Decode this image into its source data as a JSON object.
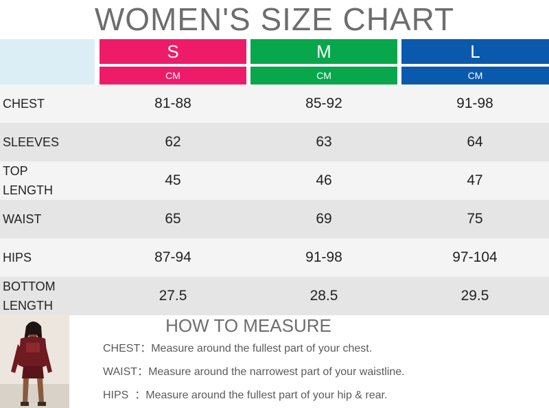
{
  "title": "WOMEN'S SIZE CHART",
  "sizes": [
    {
      "label": "S",
      "unit": "CM",
      "color": "#ee1c68"
    },
    {
      "label": "M",
      "unit": "CM",
      "color": "#08a74c"
    },
    {
      "label": "L",
      "unit": "CM",
      "color": "#0b59ad"
    }
  ],
  "rows": [
    {
      "label": "CHEST",
      "values": [
        "81-88",
        "85-92",
        "91-98"
      ]
    },
    {
      "label": "SLEEVES",
      "values": [
        "62",
        "63",
        "64"
      ]
    },
    {
      "label": "TOP\nLENGTH",
      "values": [
        "45",
        "46",
        "47"
      ]
    },
    {
      "label": "WAIST",
      "values": [
        "65",
        "69",
        "75"
      ]
    },
    {
      "label": "HIPS",
      "values": [
        "87-94",
        "91-98",
        "97-104"
      ]
    },
    {
      "label": "BOTTOM\nLENGTH",
      "values": [
        "27.5",
        "28.5",
        "29.5"
      ]
    }
  ],
  "how_to_measure": {
    "title": "HOW TO MEASURE",
    "lines": [
      "CHEST：Measure around the fullest part of your chest.",
      "WAIST：Measure around the narrowest part of your waistline.",
      "HIPS  ：Measure around the fullest part of your hip & rear."
    ]
  }
}
